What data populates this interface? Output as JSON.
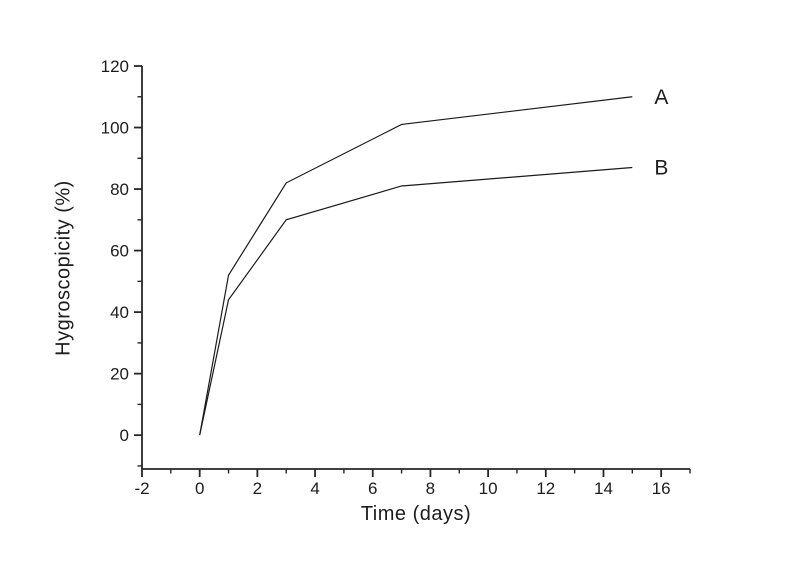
{
  "chart_data": {
    "type": "line",
    "title": "",
    "xlabel": "Time (days)",
    "ylabel": "Hygroscopicity (%)",
    "x": [
      0,
      1,
      3,
      7,
      15
    ],
    "series": [
      {
        "name": "A",
        "values": [
          0,
          52,
          82,
          101,
          110
        ]
      },
      {
        "name": "B",
        "values": [
          0,
          44,
          70,
          81,
          87
        ]
      }
    ],
    "xlim": [
      -2,
      17
    ],
    "ylim": [
      -11,
      120
    ],
    "x_major_ticks": [
      -2,
      0,
      2,
      4,
      6,
      8,
      10,
      12,
      14,
      16
    ],
    "x_minor_ticks": [
      -1,
      1,
      3,
      5,
      7,
      9,
      11,
      13,
      15,
      17
    ],
    "y_major_ticks": [
      0,
      20,
      40,
      60,
      80,
      100,
      120
    ],
    "y_minor_ticks": [
      -10,
      10,
      30,
      50,
      70,
      90,
      110
    ],
    "grid": false,
    "legend_position": "line-end-labels",
    "line_color": "#1a1a1a",
    "axis_color": "#262626",
    "text_color": "#1c1c1c",
    "background_color": "#ffffff"
  }
}
